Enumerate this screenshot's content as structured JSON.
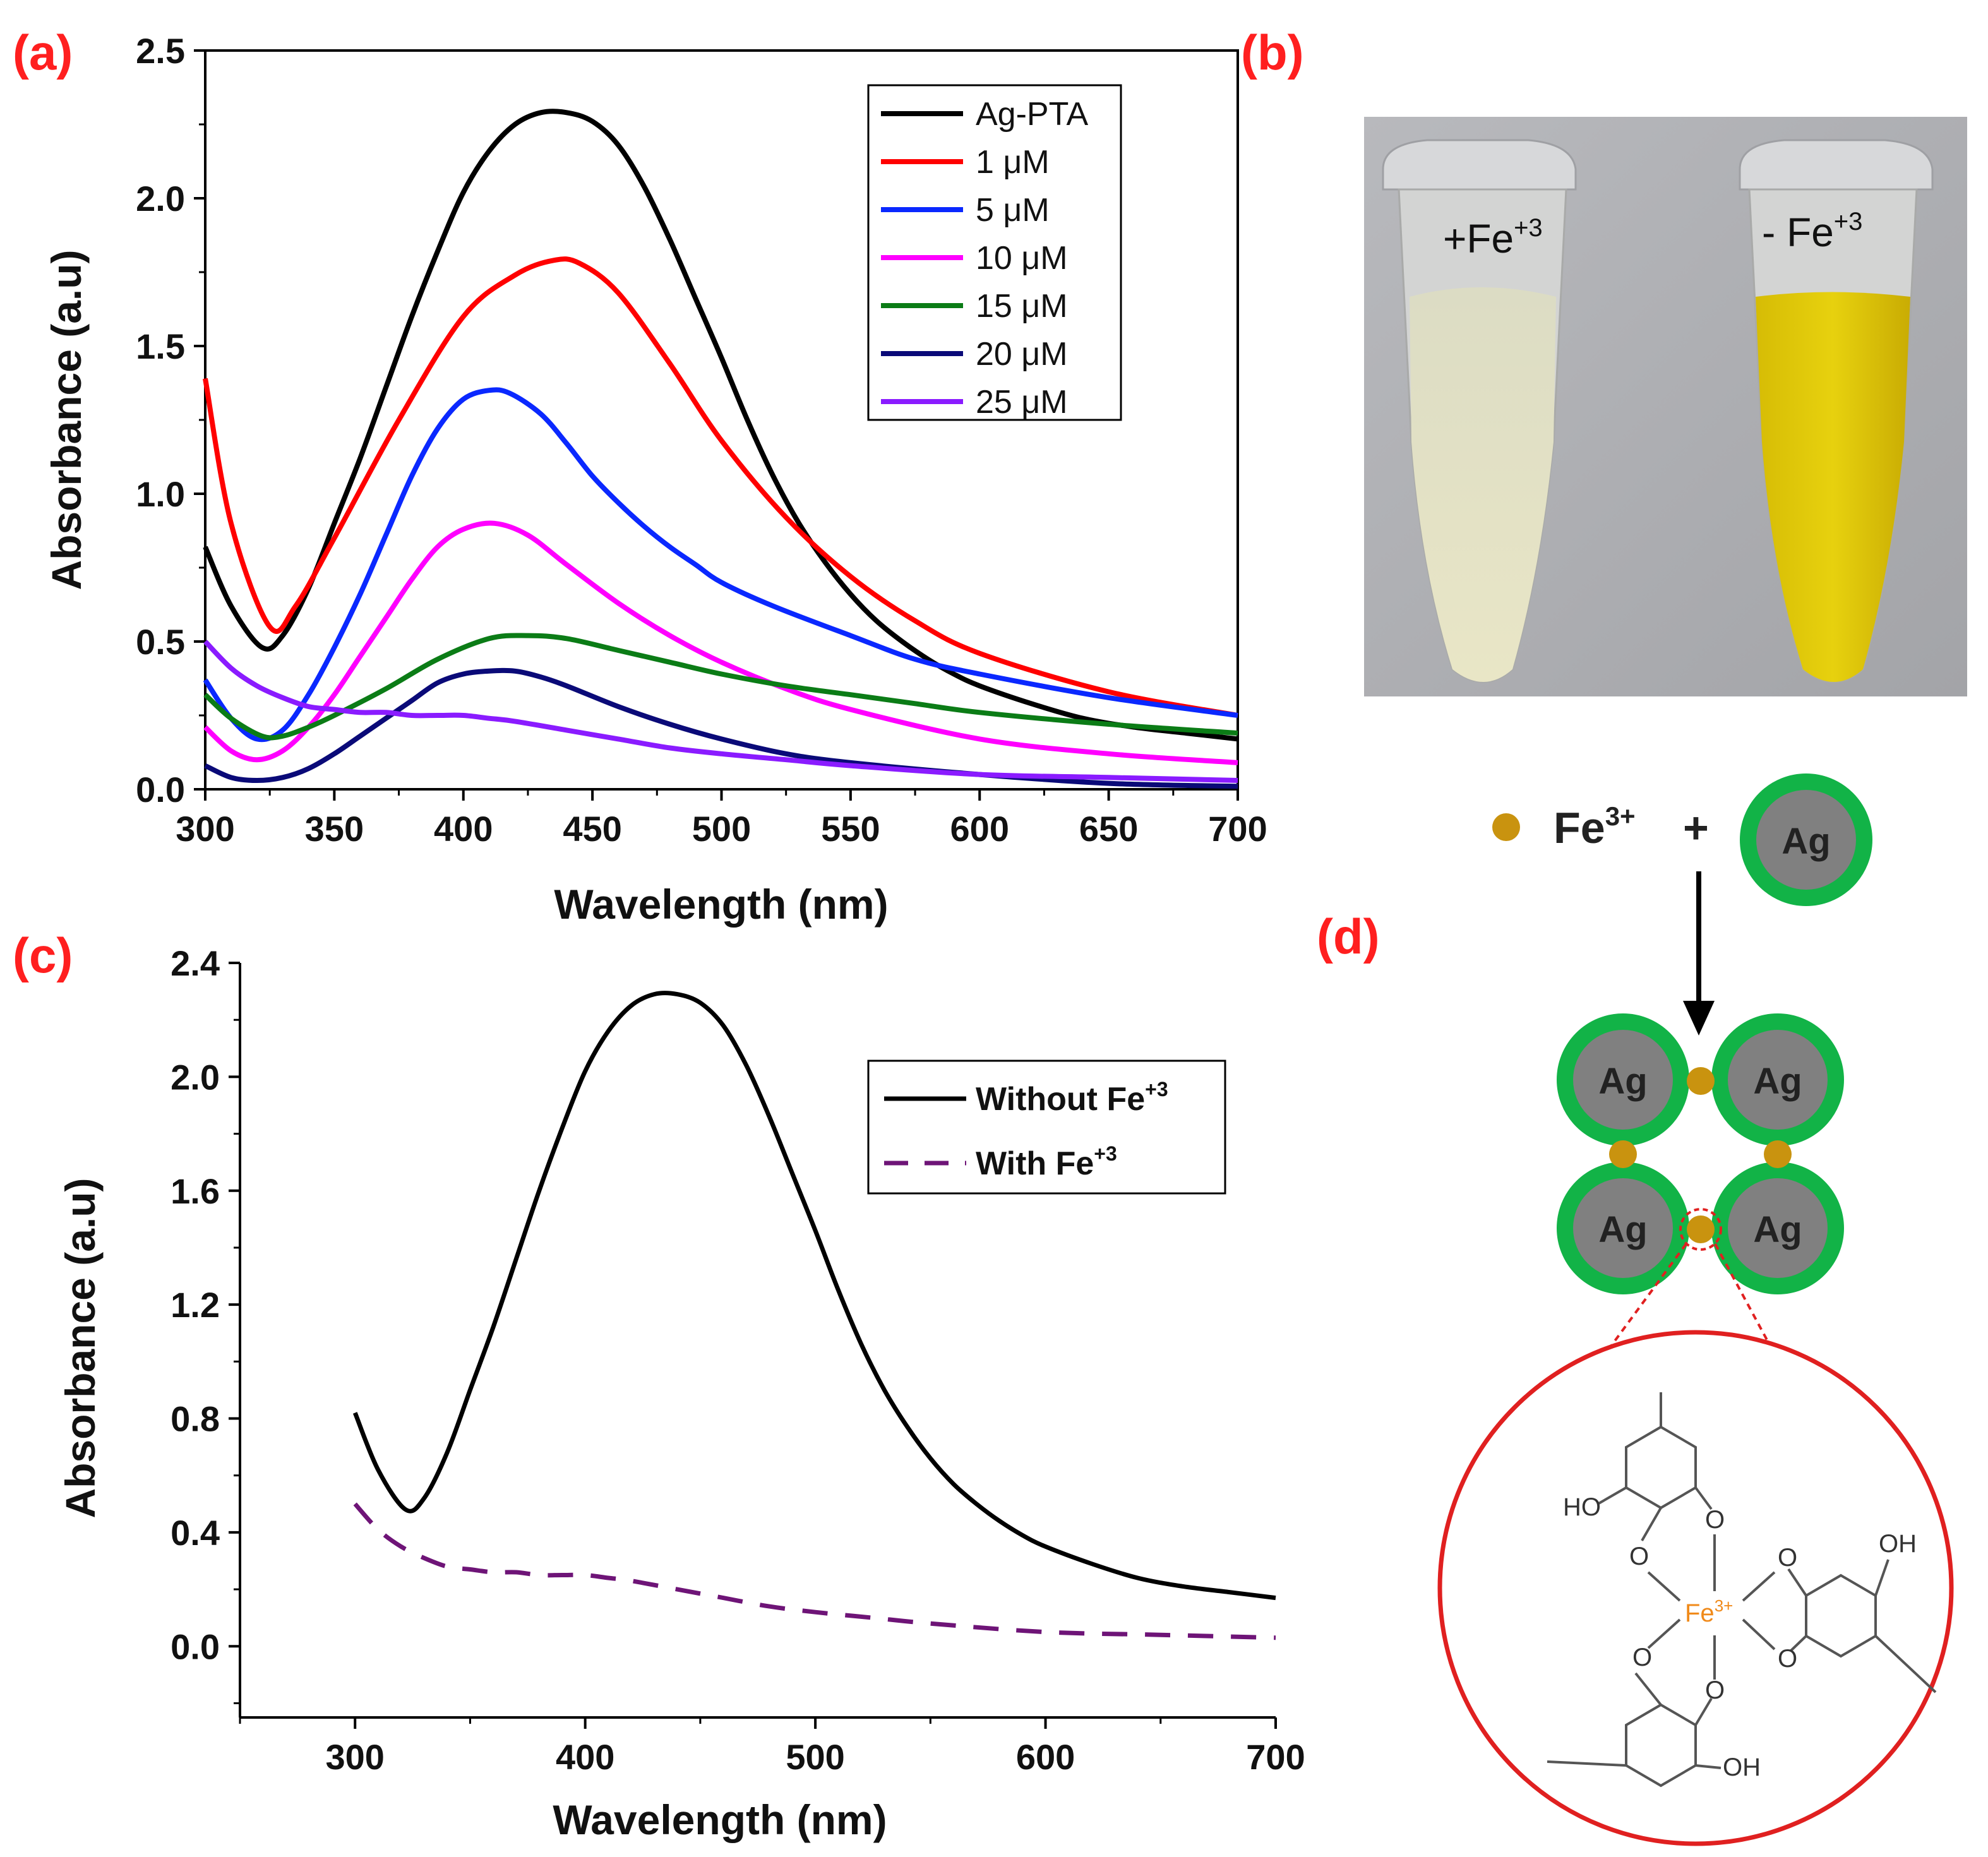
{
  "chart_data": [
    {
      "panel": "(a)",
      "type": "line",
      "xlabel": "Wavelength (nm)",
      "ylabel": "Absorbance (a.u)",
      "xlim": [
        300,
        700
      ],
      "ylim": [
        0,
        2.5
      ],
      "xticks": [
        "300",
        "350",
        "400",
        "450",
        "500",
        "550",
        "600",
        "650",
        "700"
      ],
      "yticks": [
        "0.0",
        "0.5",
        "1.0",
        "1.5",
        "2.0",
        "2.5"
      ],
      "legend_position": "top-right",
      "series": [
        {
          "name": "Ag-PTA",
          "color": "#000000",
          "x": [
            300,
            310,
            322,
            330,
            340,
            350,
            360,
            370,
            380,
            390,
            400,
            410,
            420,
            430,
            440,
            450,
            460,
            470,
            480,
            490,
            500,
            510,
            520,
            530,
            540,
            550,
            560,
            570,
            580,
            590,
            600,
            620,
            640,
            660,
            680,
            700
          ],
          "y": [
            0.82,
            0.62,
            0.48,
            0.52,
            0.68,
            0.9,
            1.12,
            1.36,
            1.6,
            1.82,
            2.02,
            2.16,
            2.25,
            2.29,
            2.29,
            2.26,
            2.18,
            2.04,
            1.86,
            1.66,
            1.46,
            1.25,
            1.06,
            0.9,
            0.77,
            0.66,
            0.57,
            0.5,
            0.44,
            0.39,
            0.35,
            0.29,
            0.24,
            0.21,
            0.19,
            0.17
          ]
        },
        {
          "name": "1 μM",
          "color": "#ff0000",
          "x": [
            300,
            310,
            325,
            335,
            350,
            375,
            400,
            420,
            435,
            445,
            460,
            480,
            500,
            525,
            550,
            575,
            600,
            650,
            700
          ],
          "y": [
            1.39,
            0.9,
            0.55,
            0.62,
            0.85,
            1.25,
            1.6,
            1.74,
            1.79,
            1.78,
            1.68,
            1.44,
            1.18,
            0.92,
            0.72,
            0.57,
            0.46,
            0.33,
            0.25
          ]
        },
        {
          "name": "5 μM",
          "color": "#0a28ff",
          "x": [
            300,
            310,
            320,
            330,
            340,
            350,
            360,
            370,
            380,
            390,
            400,
            410,
            418,
            430,
            440,
            450,
            460,
            470,
            480,
            490,
            500,
            520,
            550,
            575,
            600,
            650,
            700
          ],
          "y": [
            0.37,
            0.24,
            0.17,
            0.2,
            0.32,
            0.48,
            0.66,
            0.86,
            1.06,
            1.22,
            1.32,
            1.35,
            1.34,
            1.27,
            1.17,
            1.06,
            0.97,
            0.89,
            0.82,
            0.76,
            0.7,
            0.62,
            0.52,
            0.44,
            0.39,
            0.31,
            0.25
          ]
        },
        {
          "name": "10 μM",
          "color": "#ff00ff",
          "x": [
            300,
            310,
            320,
            330,
            340,
            350,
            360,
            370,
            380,
            390,
            400,
            412,
            425,
            440,
            460,
            480,
            500,
            525,
            550,
            600,
            650,
            700
          ],
          "y": [
            0.21,
            0.13,
            0.1,
            0.13,
            0.21,
            0.32,
            0.45,
            0.58,
            0.71,
            0.82,
            0.88,
            0.9,
            0.86,
            0.76,
            0.63,
            0.52,
            0.43,
            0.34,
            0.27,
            0.17,
            0.12,
            0.09
          ]
        },
        {
          "name": "15 μM",
          "color": "#0b7c16",
          "x": [
            300,
            310,
            322,
            330,
            340,
            350,
            370,
            390,
            410,
            425,
            440,
            460,
            480,
            500,
            525,
            550,
            575,
            600,
            650,
            700
          ],
          "y": [
            0.32,
            0.24,
            0.18,
            0.18,
            0.21,
            0.25,
            0.34,
            0.44,
            0.51,
            0.52,
            0.51,
            0.47,
            0.43,
            0.39,
            0.35,
            0.32,
            0.29,
            0.26,
            0.22,
            0.19
          ]
        },
        {
          "name": "20 μM",
          "color": "#0a0a78",
          "x": [
            300,
            310,
            320,
            330,
            340,
            350,
            360,
            370,
            380,
            390,
            400,
            410,
            420,
            430,
            440,
            460,
            480,
            500,
            525,
            550,
            600,
            650,
            700
          ],
          "y": [
            0.08,
            0.04,
            0.03,
            0.04,
            0.07,
            0.12,
            0.18,
            0.24,
            0.3,
            0.36,
            0.39,
            0.4,
            0.4,
            0.38,
            0.35,
            0.28,
            0.22,
            0.17,
            0.12,
            0.09,
            0.05,
            0.02,
            0.01
          ]
        },
        {
          "name": "25 μM",
          "color": "#8a1bff",
          "x": [
            300,
            310,
            320,
            330,
            340,
            350,
            360,
            370,
            380,
            390,
            400,
            410,
            420,
            440,
            460,
            480,
            500,
            525,
            550,
            600,
            650,
            700
          ],
          "y": [
            0.5,
            0.41,
            0.35,
            0.31,
            0.28,
            0.27,
            0.26,
            0.26,
            0.25,
            0.25,
            0.25,
            0.24,
            0.23,
            0.2,
            0.17,
            0.14,
            0.12,
            0.1,
            0.08,
            0.05,
            0.04,
            0.03
          ]
        }
      ]
    },
    {
      "panel": "(c)",
      "type": "line",
      "xlabel": "Wavelength (nm)",
      "ylabel": "Absorbance (a.u)",
      "xlim": [
        250,
        700
      ],
      "ylim": [
        -0.25,
        2.4
      ],
      "xticks": [
        "300",
        "400",
        "500",
        "600",
        "700"
      ],
      "yticks": [
        "0.0",
        "0.4",
        "0.8",
        "1.2",
        "1.6",
        "2.0",
        "2.4"
      ],
      "legend_position": "top-right",
      "series": [
        {
          "name": "Without Fe",
          "name_sup": "+3",
          "color": "#000000",
          "dash": false,
          "x": [
            300,
            310,
            322,
            330,
            340,
            350,
            360,
            370,
            380,
            390,
            400,
            410,
            420,
            430,
            440,
            450,
            460,
            470,
            480,
            490,
            500,
            510,
            520,
            530,
            540,
            550,
            560,
            570,
            580,
            590,
            600,
            620,
            640,
            660,
            680,
            700
          ],
          "y": [
            0.82,
            0.62,
            0.48,
            0.52,
            0.68,
            0.9,
            1.12,
            1.36,
            1.6,
            1.82,
            2.02,
            2.16,
            2.25,
            2.29,
            2.29,
            2.26,
            2.18,
            2.04,
            1.86,
            1.66,
            1.46,
            1.25,
            1.06,
            0.9,
            0.77,
            0.66,
            0.57,
            0.5,
            0.44,
            0.39,
            0.35,
            0.29,
            0.24,
            0.21,
            0.19,
            0.17
          ]
        },
        {
          "name": "With Fe",
          "name_sup": "+3",
          "color": "#6e1477",
          "dash": true,
          "x": [
            300,
            310,
            320,
            330,
            340,
            350,
            360,
            370,
            380,
            390,
            400,
            410,
            420,
            440,
            460,
            480,
            500,
            525,
            550,
            600,
            650,
            700
          ],
          "y": [
            0.5,
            0.41,
            0.35,
            0.31,
            0.28,
            0.27,
            0.26,
            0.26,
            0.25,
            0.25,
            0.25,
            0.24,
            0.23,
            0.2,
            0.17,
            0.14,
            0.12,
            0.1,
            0.08,
            0.05,
            0.04,
            0.03
          ]
        }
      ]
    }
  ],
  "panels": {
    "a": "(a)",
    "b": "(b)",
    "c": "(c)",
    "d": "(d)"
  },
  "photo": {
    "left_label": "+Fe",
    "left_sup": "+3",
    "right_label": "- Fe",
    "right_sup": "+3"
  },
  "scheme": {
    "ion": "Fe",
    "ion_sup": "3+",
    "plus": "+",
    "particle": "Ag",
    "chem_center": "Fe",
    "chem_center_sup": "3+",
    "chem_o": "O",
    "chem_ho": "HO",
    "chem_oh": "OH"
  },
  "colors": {
    "label_red": "#ff1f1f",
    "fe_gold": "#c9930f",
    "ag_core": "#808080",
    "ag_shell": "#12b347",
    "zoom_red": "#e02020",
    "vial_yellow": "#e2cc0a"
  }
}
